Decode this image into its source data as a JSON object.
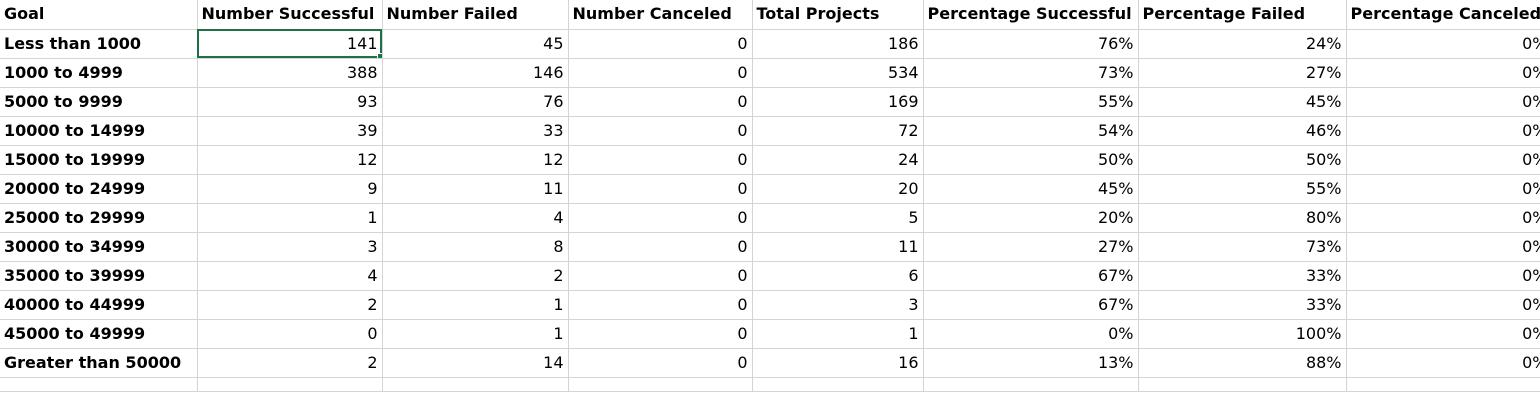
{
  "sheet": {
    "columns": [
      "Goal",
      "Number Successful",
      "Number Failed",
      "Number Canceled",
      "Total Projects",
      "Percentage Successful",
      "Percentage Failed",
      "Percentage Canceled"
    ],
    "rows": [
      {
        "goal": "Less than 1000",
        "successful": "141",
        "failed": "45",
        "canceled": "0",
        "total": "186",
        "pct_successful": "76%",
        "pct_failed": "24%",
        "pct_canceled": "0%"
      },
      {
        "goal": "1000 to 4999",
        "successful": "388",
        "failed": "146",
        "canceled": "0",
        "total": "534",
        "pct_successful": "73%",
        "pct_failed": "27%",
        "pct_canceled": "0%"
      },
      {
        "goal": "5000 to 9999",
        "successful": "93",
        "failed": "76",
        "canceled": "0",
        "total": "169",
        "pct_successful": "55%",
        "pct_failed": "45%",
        "pct_canceled": "0%"
      },
      {
        "goal": "10000 to 14999",
        "successful": "39",
        "failed": "33",
        "canceled": "0",
        "total": "72",
        "pct_successful": "54%",
        "pct_failed": "46%",
        "pct_canceled": "0%"
      },
      {
        "goal": "15000 to 19999",
        "successful": "12",
        "failed": "12",
        "canceled": "0",
        "total": "24",
        "pct_successful": "50%",
        "pct_failed": "50%",
        "pct_canceled": "0%"
      },
      {
        "goal": "20000 to 24999",
        "successful": "9",
        "failed": "11",
        "canceled": "0",
        "total": "20",
        "pct_successful": "45%",
        "pct_failed": "55%",
        "pct_canceled": "0%"
      },
      {
        "goal": "25000 to 29999",
        "successful": "1",
        "failed": "4",
        "canceled": "0",
        "total": "5",
        "pct_successful": "20%",
        "pct_failed": "80%",
        "pct_canceled": "0%"
      },
      {
        "goal": "30000 to 34999",
        "successful": "3",
        "failed": "8",
        "canceled": "0",
        "total": "11",
        "pct_successful": "27%",
        "pct_failed": "73%",
        "pct_canceled": "0%"
      },
      {
        "goal": "35000 to 39999",
        "successful": "4",
        "failed": "2",
        "canceled": "0",
        "total": "6",
        "pct_successful": "67%",
        "pct_failed": "33%",
        "pct_canceled": "0%"
      },
      {
        "goal": "40000 to 44999",
        "successful": "2",
        "failed": "1",
        "canceled": "0",
        "total": "3",
        "pct_successful": "67%",
        "pct_failed": "33%",
        "pct_canceled": "0%"
      },
      {
        "goal": "45000 to 49999",
        "successful": "0",
        "failed": "1",
        "canceled": "0",
        "total": "1",
        "pct_successful": "0%",
        "pct_failed": "100%",
        "pct_canceled": "0%"
      },
      {
        "goal": "Greater than 50000",
        "successful": "2",
        "failed": "14",
        "canceled": "0",
        "total": "16",
        "pct_successful": "13%",
        "pct_failed": "88%",
        "pct_canceled": "0%"
      }
    ]
  },
  "colors": {
    "selection": "#1e7145",
    "gridline": "#d4d4d4"
  }
}
